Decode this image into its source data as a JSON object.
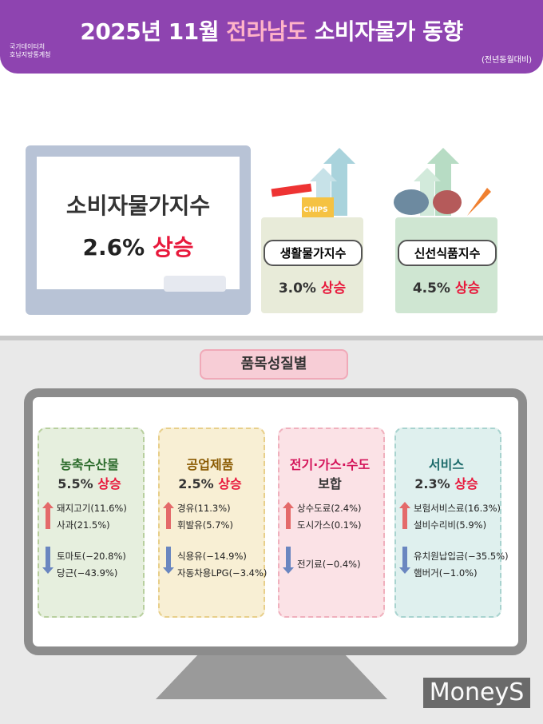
{
  "header": {
    "title_prefix": "2025년 11월",
    "title_region": "전라남도",
    "title_suffix": "소비자물가 동향",
    "agency_line1": "국가데이터처",
    "agency_line2": "호남지방통계청",
    "note": "(전년동월대비)"
  },
  "summary": {
    "cpi": {
      "label": "소비자물가지수",
      "value": "2.6%",
      "trend": "상승"
    },
    "living": {
      "label": "생활물가지수",
      "value": "3.0%",
      "trend": "상승",
      "illustration_text": "CHIPS"
    },
    "fresh": {
      "label": "신선식품지수",
      "value": "4.5%",
      "trend": "상승"
    }
  },
  "section_title": "품목성질별",
  "groups": [
    {
      "name": "농축수산물",
      "value": "5.5%",
      "trend": "상승",
      "up": [
        "돼지고기(11.6%)",
        "사과(21.5%)"
      ],
      "down": [
        "토마토(−20.8%)",
        "당근(−43.9%)"
      ]
    },
    {
      "name": "공업제품",
      "value": "2.5%",
      "trend": "상승",
      "up": [
        "경유(11.3%)",
        "휘발유(5.7%)"
      ],
      "down": [
        "식용유(−14.9%)",
        "자동차용LPG(−3.4%)"
      ]
    },
    {
      "name": "전기·가스·수도",
      "status": "보합",
      "up": [
        "상수도료(2.4%)",
        "도시가스(0.1%)"
      ],
      "down": [
        "전기료(−0.4%)"
      ]
    },
    {
      "name": "서비스",
      "value": "2.3%",
      "trend": "상승",
      "up": [
        "보험서비스료(16.3%)",
        "설비수리비(5.9%)"
      ],
      "down": [
        "유치원납입금(−35.5%)",
        "햄버거(−1.0%)"
      ]
    }
  ],
  "watermark": "MoneyS"
}
